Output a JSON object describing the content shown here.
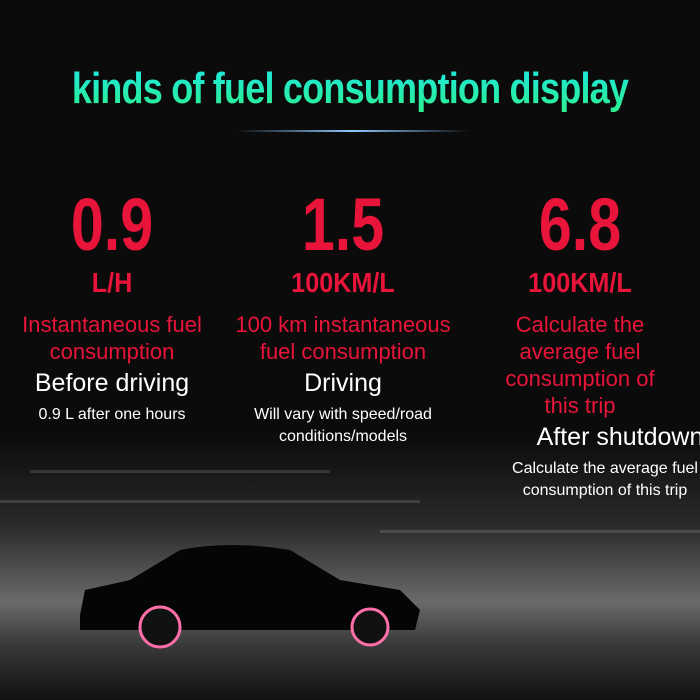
{
  "title": "kinds of fuel consumption display",
  "colors": {
    "value": "#e8143a",
    "title_top": "#1ee6e6",
    "title_bottom": "#2cf08a"
  },
  "modes": [
    {
      "value": "0.9",
      "unit": "L/H",
      "type": "Instantaneous fuel consumption",
      "state": "Before driving",
      "note": "0.9 L after one hours"
    },
    {
      "value": "1.5",
      "unit": "100KM/L",
      "type": "100 km instantaneous fuel consumption",
      "state": "Driving",
      "note": "Will vary with speed/road conditions/models"
    },
    {
      "value": "6.8",
      "unit": "100KM/L",
      "type": "Calculate the average fuel consumption of this trip",
      "state": "After shutdown",
      "note": "Calculate the average fuel consumption of this trip"
    }
  ]
}
